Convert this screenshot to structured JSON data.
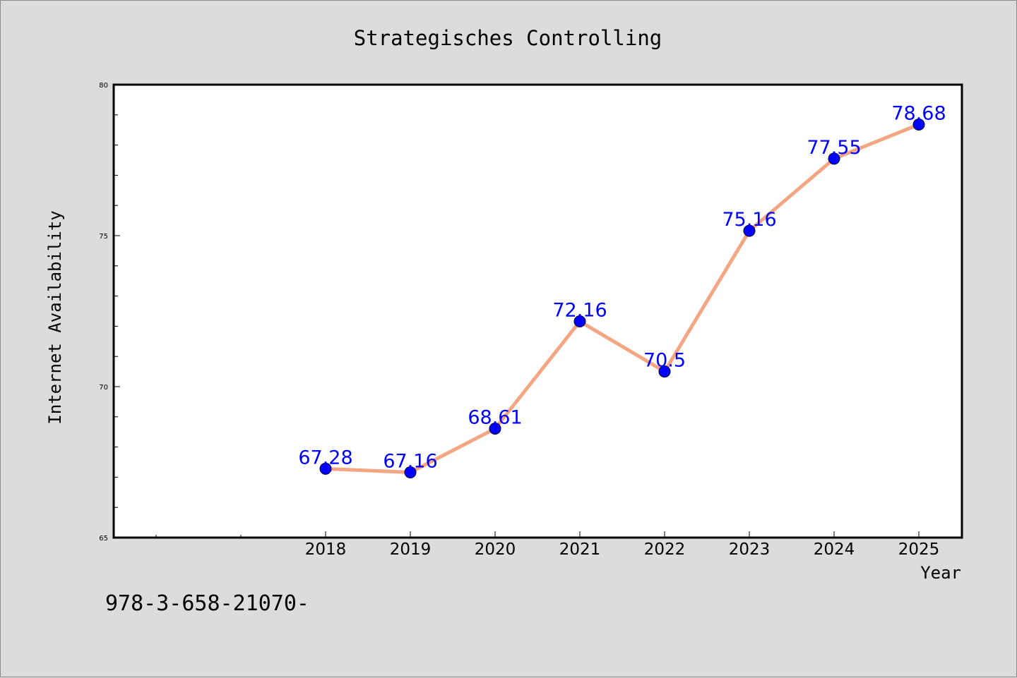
{
  "chart_data": {
    "type": "line",
    "title": "Strategisches Controlling",
    "xlabel": "Year",
    "ylabel": "Internet Availability",
    "categories": [
      "2018",
      "2019",
      "2020",
      "2021",
      "2022",
      "2023",
      "2024",
      "2025"
    ],
    "series": [
      {
        "values": [
          67.28,
          67.16,
          68.61,
          72.16,
          70.5,
          75.16,
          77.55,
          78.68
        ],
        "labels": [
          "67.28",
          "67.16",
          "68.61",
          "72.16",
          "70.5",
          "75.16",
          "77.55",
          "78.68"
        ],
        "line_color": "#f4a582",
        "marker_color": "#0000ff"
      }
    ],
    "y_ticks": [
      "65",
      "70",
      "75",
      "80"
    ],
    "ylim": [
      65,
      80
    ],
    "grid": false,
    "legend": "none"
  },
  "footnote": "978-3-658-21070-",
  "colors": {
    "background": "#dcdcdc",
    "plot_area": "#ffffff",
    "line": "#f4a582",
    "marker": "#0000ff",
    "data_label": "#0000ff"
  }
}
